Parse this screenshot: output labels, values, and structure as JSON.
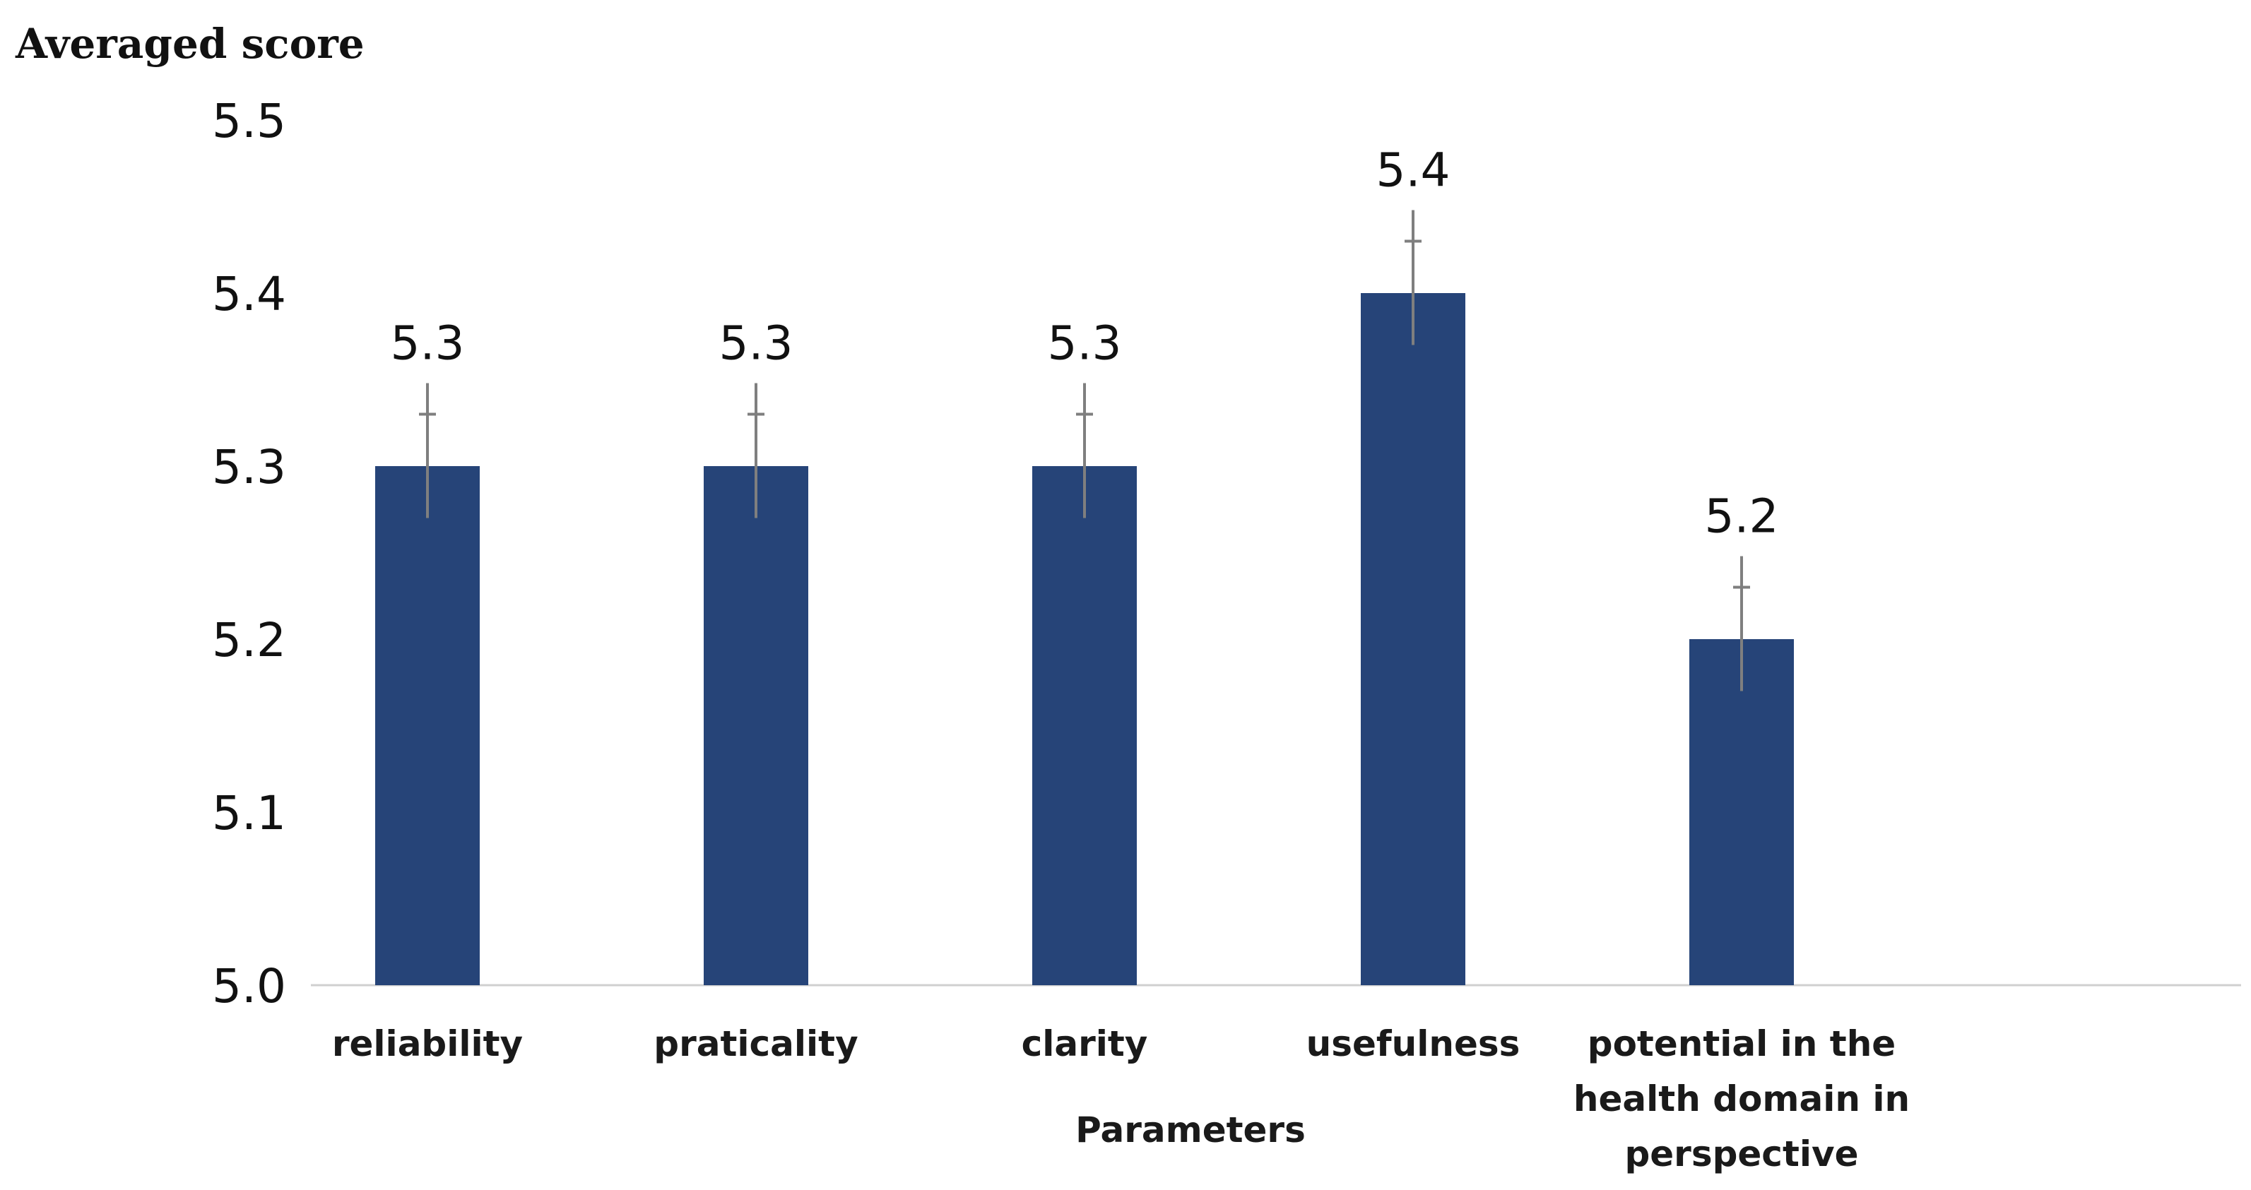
{
  "chart_data": {
    "type": "bar",
    "title": "",
    "ylabel": "Averaged score",
    "xlabel": "Parameters",
    "ylim": [
      5.0,
      5.5
    ],
    "ytick_labels": [
      "5.0",
      "5.1",
      "5.2",
      "5.3",
      "5.4",
      "5.5"
    ],
    "yticks": [
      5.0,
      5.1,
      5.2,
      5.3,
      5.4,
      5.5
    ],
    "categories": [
      "reliability",
      "praticality",
      "clarity",
      "usefulness",
      "potential in the health domain in perspective"
    ],
    "category_lines": [
      [
        "reliability"
      ],
      [
        "praticality"
      ],
      [
        "clarity"
      ],
      [
        "usefulness"
      ],
      [
        "potential in the",
        "health domain in",
        "perspective"
      ]
    ],
    "values": [
      5.3,
      5.3,
      5.3,
      5.4,
      5.2
    ],
    "data_labels": [
      "5.3",
      "5.3",
      "5.3",
      "5.4",
      "5.2"
    ],
    "error_low": [
      5.27,
      5.27,
      5.27,
      5.37,
      5.17
    ],
    "error_high": [
      5.33,
      5.33,
      5.33,
      5.43,
      5.23
    ],
    "grid": false,
    "colors": {
      "bar": "#264478",
      "error_bar": "#7f7f7f",
      "axis": "#d0d0d0",
      "text": "#111111"
    }
  }
}
